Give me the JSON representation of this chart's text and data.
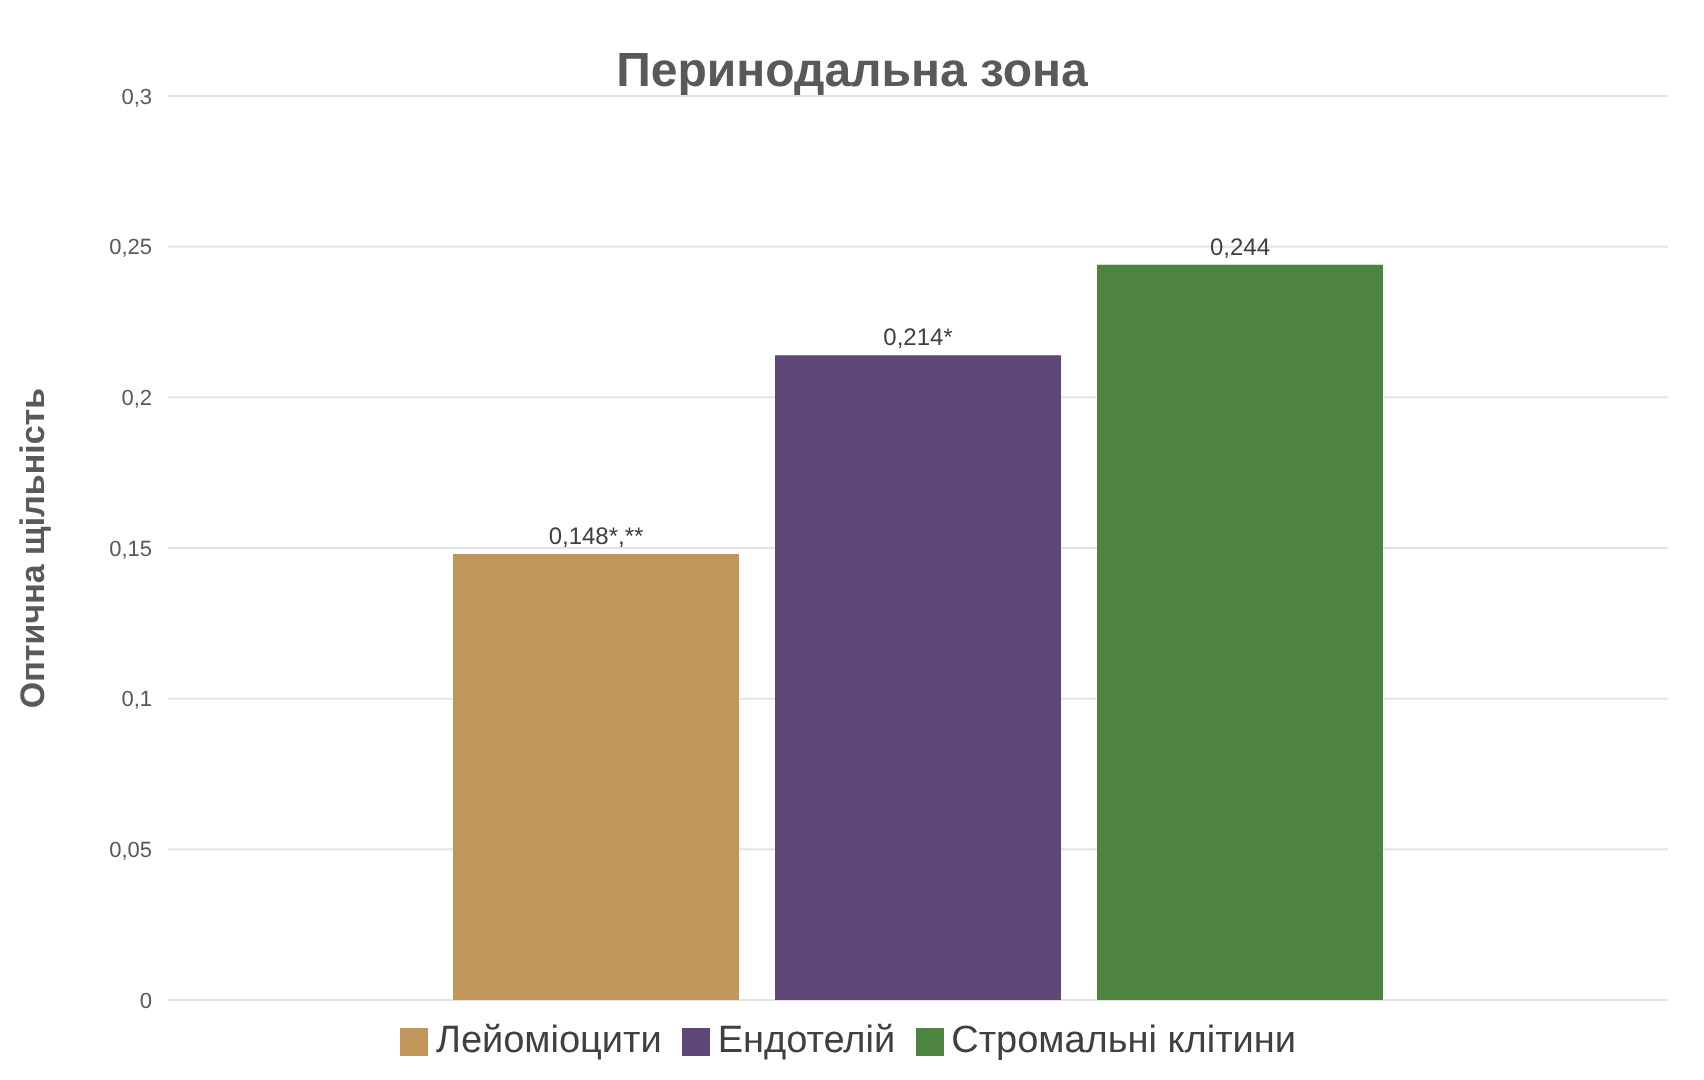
{
  "chart_data": {
    "type": "bar",
    "title": "Перинодальна зона",
    "ylabel": "Оптична щільність",
    "categories": [
      null
    ],
    "series": [
      {
        "name": "Лейоміоцити",
        "color": "#c0965a",
        "values": [
          0.148
        ],
        "value_labels": [
          "0,148*,**"
        ]
      },
      {
        "name": "Ендотелій",
        "color": "#60477a",
        "values": [
          0.214
        ],
        "value_labels": [
          "0,214*"
        ]
      },
      {
        "name": "Стромальні клітини",
        "color": "#4e8441",
        "values": [
          0.244
        ],
        "value_labels": [
          "0,244"
        ]
      }
    ],
    "ylim": [
      0,
      0.3
    ],
    "yticks": [
      {
        "value": 0,
        "label": "0"
      },
      {
        "value": 0.05,
        "label": "0,05"
      },
      {
        "value": 0.1,
        "label": "0,1"
      },
      {
        "value": 0.15,
        "label": "0,15"
      },
      {
        "value": 0.2,
        "label": "0,2"
      },
      {
        "value": 0.25,
        "label": "0,25"
      },
      {
        "value": 0.3,
        "label": "0,3"
      }
    ],
    "grid": "y",
    "legend": "bottom"
  }
}
